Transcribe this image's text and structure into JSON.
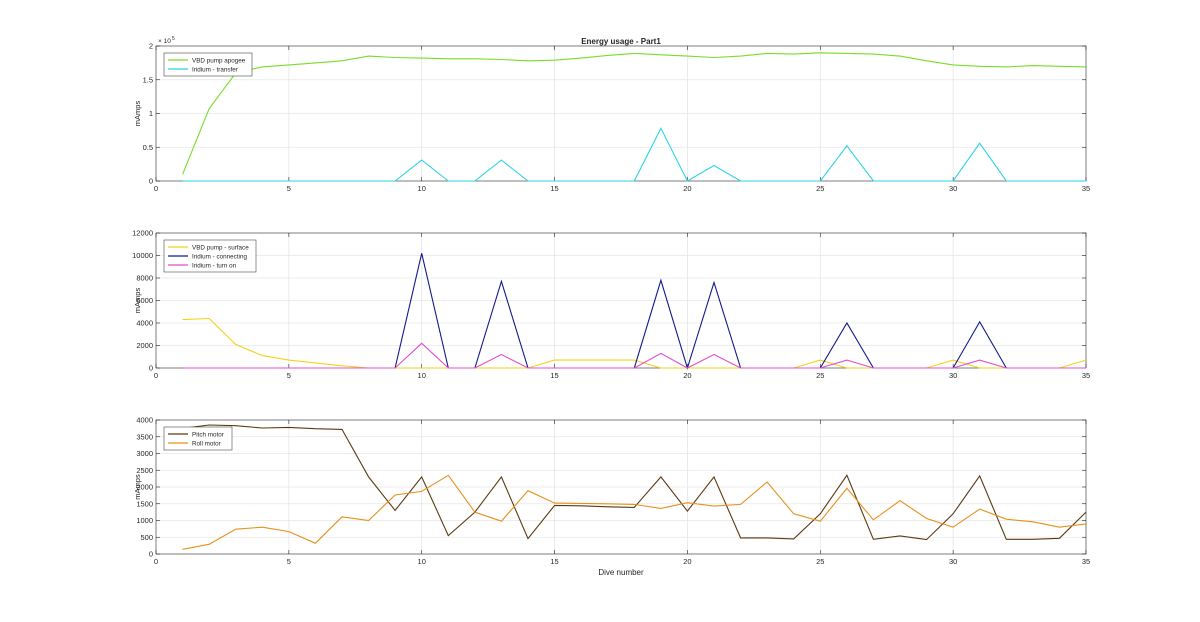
{
  "figure": {
    "title": "Energy usage - Part1",
    "xlabel": "Dive number"
  },
  "chart_data": [
    {
      "type": "line",
      "title": "Energy usage - Part1",
      "xlabel": "",
      "ylabel": "mAmps",
      "xlim": [
        0,
        35
      ],
      "ylim": [
        0,
        200000
      ],
      "x_ticks": [
        0,
        5,
        10,
        15,
        20,
        25,
        30,
        35
      ],
      "y_ticks": [
        0,
        50000,
        100000,
        150000,
        200000
      ],
      "y_tick_labels": [
        "0",
        "0.5",
        "1",
        "1.5",
        "2"
      ],
      "y_exponent_label": "× 10",
      "y_exponent_power": "5",
      "grid": true,
      "legend": "top-left",
      "series": [
        {
          "name": "VBD pump apogee",
          "color": "#77dd2a",
          "x": [
            1,
            2,
            3,
            4,
            5,
            6,
            7,
            8,
            9,
            10,
            11,
            12,
            13,
            14,
            15,
            16,
            17,
            18,
            19,
            20,
            21,
            22,
            23,
            24,
            25,
            26,
            27,
            28,
            29,
            30,
            31,
            32,
            33,
            34,
            35
          ],
          "y": [
            10000,
            107000,
            160000,
            169000,
            172000,
            175000,
            178000,
            185000,
            183000,
            182000,
            181000,
            181000,
            180000,
            178000,
            179000,
            182000,
            186000,
            189000,
            187000,
            185000,
            183000,
            185000,
            189000,
            188000,
            190000,
            189000,
            188000,
            185000,
            178000,
            172000,
            170000,
            169000,
            171000,
            170000,
            169000
          ]
        },
        {
          "name": "Iridium - transfer",
          "color": "#28d4e8",
          "x": [
            1,
            2,
            3,
            4,
            5,
            6,
            7,
            8,
            9,
            10,
            11,
            12,
            13,
            14,
            15,
            16,
            17,
            18,
            19,
            20,
            21,
            22,
            23,
            24,
            25,
            26,
            27,
            28,
            29,
            30,
            31,
            32,
            33,
            34,
            35
          ],
          "y": [
            0,
            0,
            0,
            0,
            0,
            0,
            0,
            0,
            0,
            31000,
            0,
            0,
            31000,
            0,
            0,
            0,
            0,
            0,
            78000,
            0,
            23000,
            0,
            0,
            0,
            0,
            52000,
            0,
            0,
            0,
            0,
            56000,
            0,
            0,
            0,
            0
          ]
        }
      ]
    },
    {
      "type": "line",
      "title": "",
      "xlabel": "",
      "ylabel": "mAmps",
      "xlim": [
        0,
        35
      ],
      "ylim": [
        0,
        12000
      ],
      "x_ticks": [
        0,
        5,
        10,
        15,
        20,
        25,
        30,
        35
      ],
      "y_ticks": [
        0,
        2000,
        4000,
        6000,
        8000,
        10000,
        12000
      ],
      "y_tick_labels": [
        "0",
        "2000",
        "4000",
        "6000",
        "8000",
        "10000",
        "12000"
      ],
      "grid": true,
      "legend": "top-left",
      "series": [
        {
          "name": "VBD pump - surface",
          "color": "#f2d21a",
          "x": [
            1,
            2,
            3,
            4,
            5,
            6,
            7,
            8,
            9,
            10,
            11,
            12,
            13,
            14,
            15,
            16,
            17,
            18,
            19,
            20,
            21,
            22,
            23,
            24,
            25,
            26,
            27,
            28,
            29,
            30,
            31,
            32,
            33,
            34,
            35
          ],
          "y": [
            4300,
            4400,
            2100,
            1100,
            700,
            450,
            200,
            0,
            0,
            0,
            0,
            0,
            0,
            0,
            700,
            700,
            700,
            700,
            0,
            0,
            0,
            0,
            0,
            0,
            700,
            0,
            0,
            0,
            0,
            700,
            0,
            0,
            0,
            0,
            700
          ]
        },
        {
          "name": "Iridium - connecting",
          "color": "#101a8c",
          "x": [
            1,
            2,
            3,
            4,
            5,
            6,
            7,
            8,
            9,
            10,
            11,
            12,
            13,
            14,
            15,
            16,
            17,
            18,
            19,
            20,
            21,
            22,
            23,
            24,
            25,
            26,
            27,
            28,
            29,
            30,
            31,
            32,
            33,
            34,
            35
          ],
          "y": [
            0,
            0,
            0,
            0,
            0,
            0,
            0,
            0,
            0,
            10200,
            0,
            0,
            7700,
            0,
            0,
            0,
            0,
            0,
            7800,
            0,
            7600,
            0,
            0,
            0,
            0,
            4000,
            0,
            0,
            0,
            0,
            4100,
            0,
            0,
            0,
            0
          ]
        },
        {
          "name": "Iridium - turn on",
          "color": "#e04fcf",
          "x": [
            1,
            2,
            3,
            4,
            5,
            6,
            7,
            8,
            9,
            10,
            11,
            12,
            13,
            14,
            15,
            16,
            17,
            18,
            19,
            20,
            21,
            22,
            23,
            24,
            25,
            26,
            27,
            28,
            29,
            30,
            31,
            32,
            33,
            34,
            35
          ],
          "y": [
            0,
            0,
            0,
            0,
            0,
            0,
            0,
            0,
            0,
            2200,
            0,
            0,
            1200,
            0,
            0,
            0,
            0,
            0,
            1300,
            0,
            1200,
            0,
            0,
            0,
            0,
            700,
            0,
            0,
            0,
            0,
            700,
            0,
            0,
            0,
            0
          ]
        }
      ]
    },
    {
      "type": "line",
      "title": "",
      "xlabel": "Dive number",
      "ylabel": "mAmps",
      "xlim": [
        0,
        35
      ],
      "ylim": [
        0,
        4000
      ],
      "x_ticks": [
        0,
        5,
        10,
        15,
        20,
        25,
        30,
        35
      ],
      "y_ticks": [
        0,
        500,
        1000,
        1500,
        2000,
        2500,
        3000,
        3500,
        4000
      ],
      "y_tick_labels": [
        "0",
        "500",
        "1000",
        "1500",
        "2000",
        "2500",
        "3000",
        "3500",
        "4000"
      ],
      "grid": true,
      "legend": "top-left",
      "series": [
        {
          "name": "Pitch motor",
          "color": "#5a3a10",
          "x": [
            1,
            2,
            3,
            4,
            5,
            6,
            7,
            8,
            9,
            10,
            11,
            12,
            13,
            14,
            15,
            16,
            17,
            18,
            19,
            20,
            21,
            22,
            23,
            24,
            25,
            26,
            27,
            28,
            29,
            30,
            31,
            32,
            33,
            34,
            35
          ],
          "y": [
            3750,
            3850,
            3830,
            3760,
            3780,
            3740,
            3720,
            2300,
            1300,
            2300,
            550,
            1250,
            2300,
            460,
            1450,
            1440,
            1410,
            1390,
            2300,
            1280,
            2300,
            480,
            480,
            450,
            1200,
            2350,
            440,
            540,
            430,
            1200,
            2330,
            440,
            440,
            470,
            1250
          ]
        },
        {
          "name": "Roll motor",
          "color": "#e6901c",
          "x": [
            1,
            2,
            3,
            4,
            5,
            6,
            7,
            8,
            9,
            10,
            11,
            12,
            13,
            14,
            15,
            16,
            17,
            18,
            19,
            20,
            21,
            22,
            23,
            24,
            25,
            26,
            27,
            28,
            29,
            30,
            31,
            32,
            33,
            34,
            35
          ],
          "y": [
            140,
            290,
            740,
            800,
            670,
            320,
            1110,
            1000,
            1760,
            1870,
            2350,
            1250,
            980,
            1890,
            1520,
            1510,
            1500,
            1480,
            1360,
            1530,
            1430,
            1480,
            2150,
            1200,
            980,
            1960,
            1020,
            1590,
            1060,
            800,
            1340,
            1040,
            960,
            800,
            900
          ]
        }
      ]
    }
  ]
}
